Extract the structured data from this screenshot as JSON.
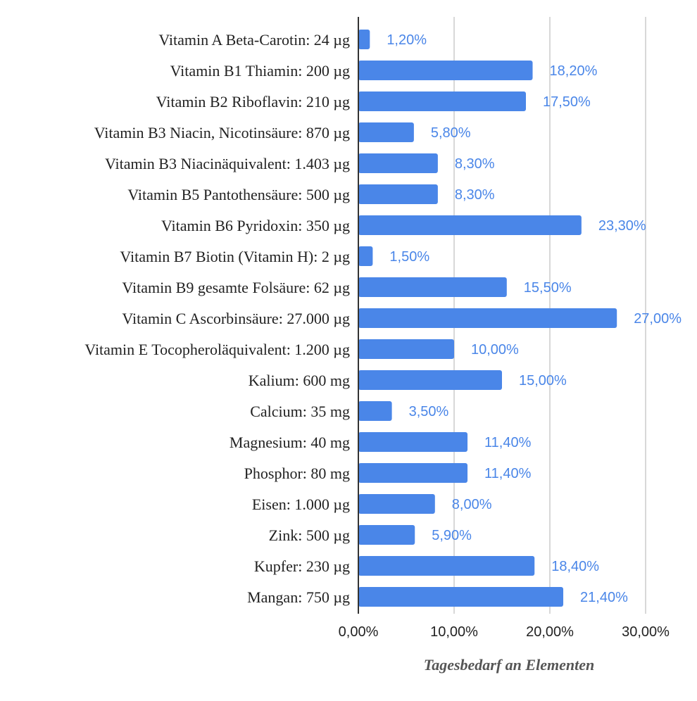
{
  "chart_data": {
    "type": "bar",
    "orientation": "horizontal",
    "categories": [
      "Vitamin A Beta-Carotin: 24 µg",
      "Vitamin B1 Thiamin: 200 µg",
      "Vitamin B2 Riboflavin: 210 µg",
      "Vitamin B3 Niacin, Nicotinsäure: 870 µg",
      "Vitamin B3 Niacinäquivalent: 1.403 µg",
      "Vitamin B5 Pantothensäure: 500 µg",
      "Vitamin B6 Pyridoxin: 350 µg",
      "Vitamin B7 Biotin (Vitamin H): 2 µg",
      "Vitamin B9 gesamte Folsäure: 62 µg",
      "Vitamin C Ascorbinsäure: 27.000 µg",
      "Vitamin E Tocopheroläquivalent: 1.200 µg",
      "Kalium: 600 mg",
      "Calcium: 35 mg",
      "Magnesium: 40 mg",
      "Phosphor: 80 mg",
      "Eisen: 1.000 µg",
      "Zink: 500 µg",
      "Kupfer: 230 µg",
      "Mangan: 750 µg"
    ],
    "values": [
      1.2,
      18.2,
      17.5,
      5.8,
      8.3,
      8.3,
      23.3,
      1.5,
      15.5,
      27.0,
      10.0,
      15.0,
      3.5,
      11.4,
      11.4,
      8.0,
      5.9,
      18.4,
      21.4
    ],
    "value_labels": [
      "1,20%",
      "18,20%",
      "17,50%",
      "5,80%",
      "8,30%",
      "8,30%",
      "23,30%",
      "1,50%",
      "15,50%",
      "27,00%",
      "10,00%",
      "15,00%",
      "3,50%",
      "11,40%",
      "11,40%",
      "8,00%",
      "5,90%",
      "18,40%",
      "21,40%"
    ],
    "x_ticks": [
      0,
      10,
      20,
      30
    ],
    "x_tick_labels": [
      "0,00%",
      "10,00%",
      "20,00%",
      "30,00%"
    ],
    "xlim": [
      0,
      30
    ],
    "xlabel": "Tagesbedarf an Elementen",
    "ylabel": "",
    "title": "",
    "grid": "vertical",
    "bar_color": "#4a86e8",
    "label_color": "#4a86e8"
  }
}
